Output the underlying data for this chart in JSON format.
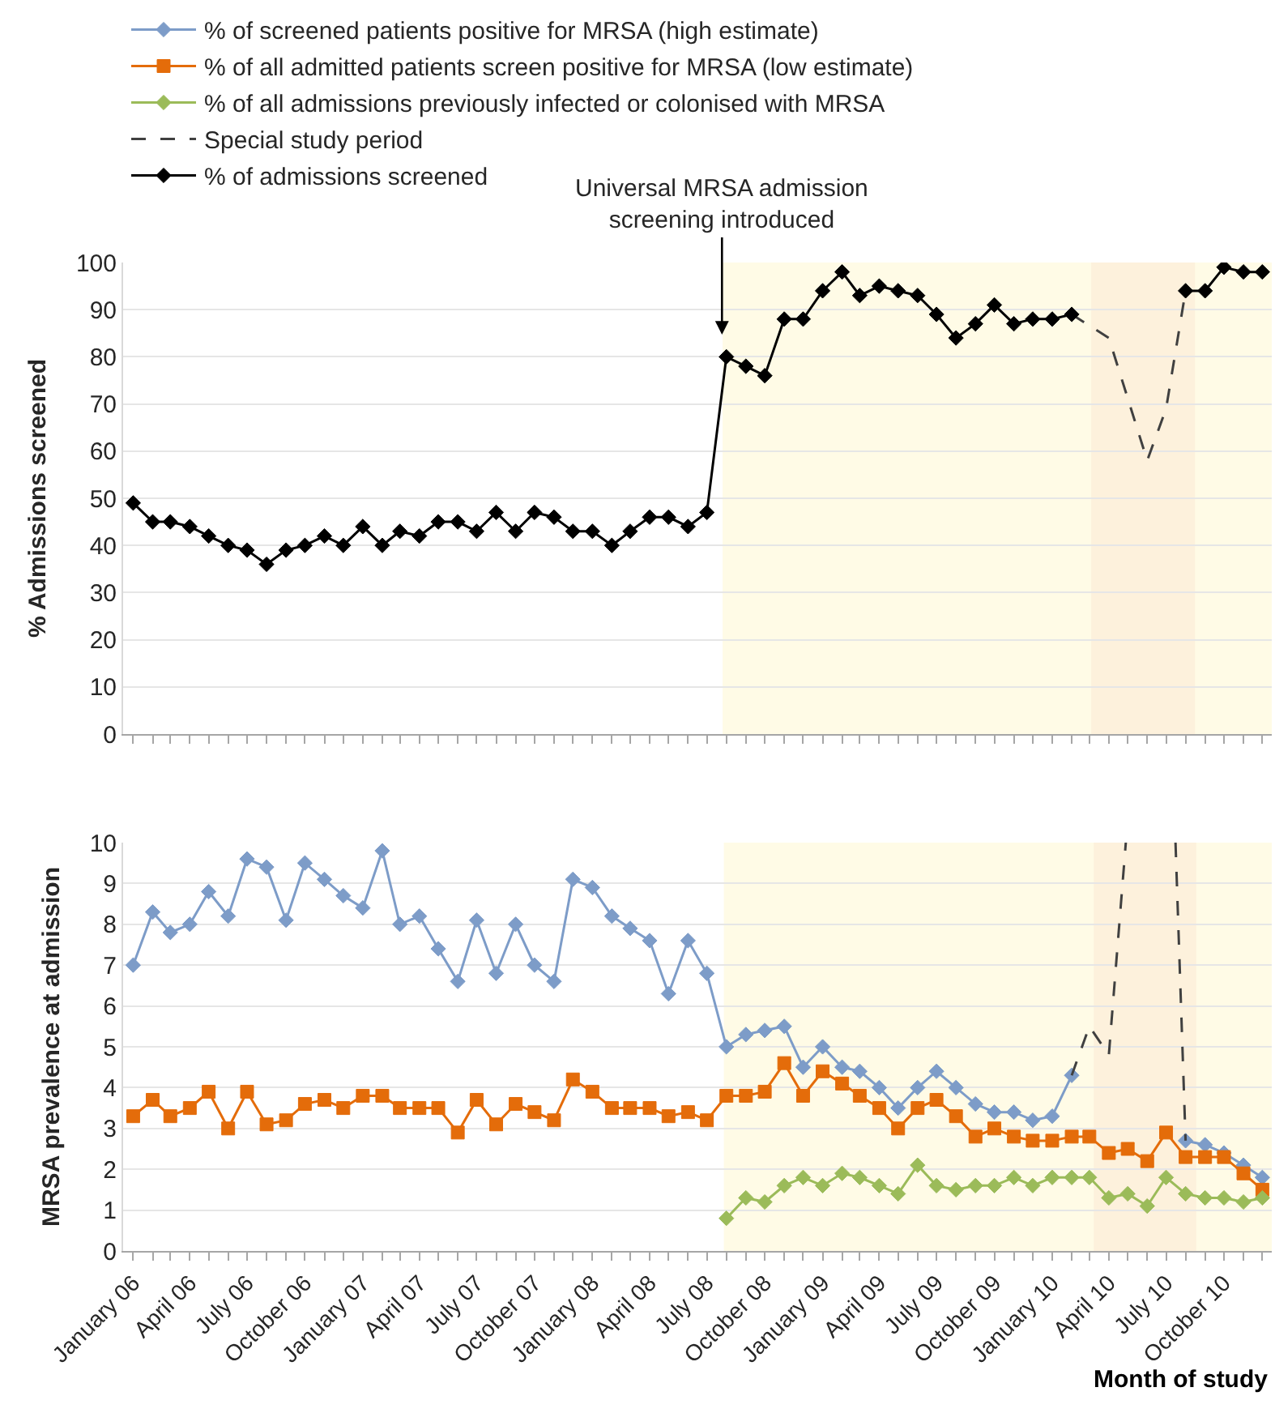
{
  "chart_data": [
    {
      "type": "line",
      "ylabel": "% Admissions screened",
      "legend": "top left",
      "grid": "y",
      "tick_labels": "y",
      "x": [
        "2006-01",
        "2006-02",
        "2006-03",
        "2006-04",
        "2006-05",
        "2006-06",
        "2006-07",
        "2006-08",
        "2006-09",
        "2006-10",
        "2006-11",
        "2006-12",
        "2007-01",
        "2007-02",
        "2007-03",
        "2007-04",
        "2007-05",
        "2007-06",
        "2007-07",
        "2007-08",
        "2007-09",
        "2007-10",
        "2007-11",
        "2007-12",
        "2008-01",
        "2008-02",
        "2008-03",
        "2008-04",
        "2008-05",
        "2008-06",
        "2008-07",
        "2008-08",
        "2008-09",
        "2008-10",
        "2008-11",
        "2008-12",
        "2009-01",
        "2009-02",
        "2009-03",
        "2009-04",
        "2009-05",
        "2009-06",
        "2009-07",
        "2009-08",
        "2009-09",
        "2009-10",
        "2009-11",
        "2009-12",
        "2010-01",
        "2010-02",
        "2010-03",
        "2010-04",
        "2010-05",
        "2010-06",
        "2010-07",
        "2010-08",
        "2010-09",
        "2010-10",
        "2010-11",
        "2010-12"
      ],
      "series": [
        {
          "name": "Special study period",
          "color": "#404040",
          "line_style": "dashed",
          "marker": "none",
          "x": [
            "2010-02",
            "2010-04",
            "2010-06",
            "2010-07",
            "2010-08"
          ],
          "values": [
            89,
            84,
            58,
            69,
            94
          ]
        },
        {
          "name": "% of admissions screened",
          "color": "#000000",
          "marker": "diamond",
          "values": [
            49,
            45,
            45,
            44,
            42,
            40,
            39,
            36,
            39,
            40,
            42,
            40,
            44,
            40,
            43,
            42,
            45,
            45,
            43,
            47,
            43,
            47,
            46,
            43,
            43,
            40,
            43,
            46,
            46,
            44,
            47,
            80,
            78,
            76,
            88,
            88,
            94,
            98,
            93,
            95,
            94,
            93,
            89,
            84,
            87,
            91,
            87,
            88,
            88,
            89,
            null,
            null,
            null,
            null,
            null,
            94,
            94,
            99,
            98,
            98
          ]
        }
      ],
      "xlim": [
        "2005-12-16",
        "2010-12-16"
      ],
      "xticks": [
        {
          "value": "2006-01",
          "label": null
        },
        {
          "value": "2006-02",
          "label": null
        },
        {
          "value": "2006-03",
          "label": null
        },
        {
          "value": "2006-04",
          "label": null
        },
        {
          "value": "2006-05",
          "label": null
        },
        {
          "value": "2006-06",
          "label": null
        },
        {
          "value": "2006-07",
          "label": null
        },
        {
          "value": "2006-08",
          "label": null
        },
        {
          "value": "2006-09",
          "label": null
        },
        {
          "value": "2006-10",
          "label": null
        },
        {
          "value": "2006-11",
          "label": null
        },
        {
          "value": "2006-12",
          "label": null
        },
        {
          "value": "2007-01",
          "label": null
        },
        {
          "value": "2007-02",
          "label": null
        },
        {
          "value": "2007-03",
          "label": null
        },
        {
          "value": "2007-04",
          "label": null
        },
        {
          "value": "2007-05",
          "label": null
        },
        {
          "value": "2007-06",
          "label": null
        },
        {
          "value": "2007-07",
          "label": null
        },
        {
          "value": "2007-08",
          "label": null
        },
        {
          "value": "2007-09",
          "label": null
        },
        {
          "value": "2007-10",
          "label": null
        },
        {
          "value": "2007-11",
          "label": null
        },
        {
          "value": "2007-12",
          "label": null
        },
        {
          "value": "2008-01",
          "label": null
        },
        {
          "value": "2008-02",
          "label": null
        },
        {
          "value": "2008-03",
          "label": null
        },
        {
          "value": "2008-04",
          "label": null
        },
        {
          "value": "2008-05",
          "label": null
        },
        {
          "value": "2008-06",
          "label": null
        },
        {
          "value": "2008-07",
          "label": null
        },
        {
          "value": "2008-08",
          "label": null
        },
        {
          "value": "2008-09",
          "label": null
        },
        {
          "value": "2008-10",
          "label": null
        },
        {
          "value": "2008-11",
          "label": null
        },
        {
          "value": "2008-12",
          "label": null
        },
        {
          "value": "2009-01",
          "label": null
        },
        {
          "value": "2009-02",
          "label": null
        },
        {
          "value": "2009-03",
          "label": null
        },
        {
          "value": "2009-04",
          "label": null
        },
        {
          "value": "2009-05",
          "label": null
        },
        {
          "value": "2009-06",
          "label": null
        },
        {
          "value": "2009-07",
          "label": null
        },
        {
          "value": "2009-08",
          "label": null
        },
        {
          "value": "2009-09",
          "label": null
        },
        {
          "value": "2009-10",
          "label": null
        },
        {
          "value": "2009-11",
          "label": null
        },
        {
          "value": "2009-12",
          "label": null
        },
        {
          "value": "2010-01",
          "label": null
        },
        {
          "value": "2010-02",
          "label": null
        },
        {
          "value": "2010-03",
          "label": null
        },
        {
          "value": "2010-04",
          "label": null
        },
        {
          "value": "2010-05",
          "label": null
        },
        {
          "value": "2010-06",
          "label": null
        },
        {
          "value": "2010-07",
          "label": null
        },
        {
          "value": "2010-08",
          "label": null
        },
        {
          "value": "2010-09",
          "label": null
        },
        {
          "value": "2010-10",
          "label": null
        },
        {
          "value": "2010-11",
          "label": null
        },
        {
          "value": "2010-12",
          "label": null
        }
      ],
      "ylim": [
        0,
        100
      ],
      "yticks": [
        0,
        10,
        20,
        30,
        40,
        50,
        60,
        70,
        80,
        90,
        100
      ],
      "bands": [
        {
          "axis": "x",
          "from": "2008-07-26",
          "to": "2010-12-16",
          "color": "#fffbe6"
        },
        {
          "axis": "x",
          "from": "2010-03-04",
          "to": "2010-08-16",
          "color": "#fdf1dc"
        }
      ],
      "annotations": [
        {
          "text": "Universal MRSA admission screening introduced",
          "x": "2008-07-25",
          "y": 84
        }
      ]
    },
    {
      "type": "line",
      "xlabel": "Month of study",
      "ylabel": "MRSA prevalence at admission",
      "legend": "top left",
      "grid": "y",
      "x": [
        "2006-01",
        "2006-02",
        "2006-03",
        "2006-04",
        "2006-05",
        "2006-06",
        "2006-07",
        "2006-08",
        "2006-09",
        "2006-10",
        "2006-11",
        "2006-12",
        "2007-01",
        "2007-02",
        "2007-03",
        "2007-04",
        "2007-05",
        "2007-06",
        "2007-07",
        "2007-08",
        "2007-09",
        "2007-10",
        "2007-11",
        "2007-12",
        "2008-01",
        "2008-02",
        "2008-03",
        "2008-04",
        "2008-05",
        "2008-06",
        "2008-07",
        "2008-08",
        "2008-09",
        "2008-10",
        "2008-11",
        "2008-12",
        "2009-01",
        "2009-02",
        "2009-03",
        "2009-04",
        "2009-05",
        "2009-06",
        "2009-07",
        "2009-08",
        "2009-09",
        "2009-10",
        "2009-11",
        "2009-12",
        "2010-01",
        "2010-02",
        "2010-03",
        "2010-04",
        "2010-05",
        "2010-06",
        "2010-07",
        "2010-08",
        "2010-09",
        "2010-10",
        "2010-11",
        "2010-12"
      ],
      "series": [
        {
          "name": "% of screened patients positive for MRSA (high estimate)",
          "color": "#7d9cc8",
          "marker": "diamond",
          "values": [
            7.0,
            8.3,
            7.8,
            8.0,
            8.8,
            8.2,
            9.6,
            9.4,
            8.1,
            9.5,
            9.1,
            8.7,
            8.4,
            9.8,
            8.0,
            8.2,
            7.4,
            6.6,
            8.1,
            6.8,
            8.0,
            7.0,
            6.6,
            9.1,
            8.9,
            8.2,
            7.9,
            7.6,
            6.3,
            7.6,
            6.8,
            5.0,
            5.3,
            5.4,
            5.5,
            4.5,
            5.0,
            4.5,
            4.4,
            4.0,
            3.5,
            4.0,
            4.4,
            4.0,
            3.6,
            3.4,
            3.4,
            3.2,
            3.3,
            4.3,
            null,
            null,
            null,
            null,
            null,
            2.7,
            2.6,
            2.4,
            2.1,
            1.8
          ]
        },
        {
          "name": "% of all admitted patients screen positive for MRSA (low estimate)",
          "color": "#e46c0a",
          "marker": "square",
          "values": [
            3.3,
            3.7,
            3.3,
            3.5,
            3.9,
            3.0,
            3.9,
            3.1,
            3.2,
            3.6,
            3.7,
            3.5,
            3.8,
            3.8,
            3.5,
            3.5,
            3.5,
            2.9,
            3.7,
            3.1,
            3.6,
            3.4,
            3.2,
            4.2,
            3.9,
            3.5,
            3.5,
            3.5,
            3.3,
            3.4,
            3.2,
            3.8,
            3.8,
            3.9,
            4.6,
            3.8,
            4.4,
            4.1,
            3.8,
            3.5,
            3.0,
            3.5,
            3.7,
            3.3,
            2.8,
            3.0,
            2.8,
            2.7,
            2.7,
            2.8,
            2.8,
            2.4,
            2.5,
            2.2,
            2.9,
            2.3,
            2.3,
            2.3,
            1.9,
            1.5
          ]
        },
        {
          "name": "% of all admissions previously infected or colonised with MRSA",
          "color": "#9bbb59",
          "marker": "diamond",
          "values": [
            null,
            null,
            null,
            null,
            null,
            null,
            null,
            null,
            null,
            null,
            null,
            null,
            null,
            null,
            null,
            null,
            null,
            null,
            null,
            null,
            null,
            null,
            null,
            null,
            null,
            null,
            null,
            null,
            null,
            null,
            null,
            0.8,
            1.3,
            1.2,
            1.6,
            1.8,
            1.6,
            1.9,
            1.8,
            1.6,
            1.4,
            2.1,
            1.6,
            1.5,
            1.6,
            1.6,
            1.8,
            1.6,
            1.8,
            1.8,
            1.8,
            1.3,
            1.4,
            1.1,
            1.8,
            1.4,
            1.3,
            1.3,
            1.2,
            1.3
          ]
        },
        {
          "color": "#404040",
          "line_style": "dashed",
          "marker": "none",
          "x": [
            "2010-02",
            "2010-03",
            "2010-04",
            "2010-04-28",
            "2010-05-31",
            "2010-07-16",
            "2010-08"
          ],
          "values": [
            4.3,
            5.5,
            4.8,
            10,
            null,
            10,
            2.7
          ]
        }
      ],
      "xlim": [
        "2005-12-16",
        "2010-12-16"
      ],
      "xticks": [
        {
          "value": "2006-01",
          "label": "January 06"
        },
        {
          "value": "2006-02",
          "label": null
        },
        {
          "value": "2006-03",
          "label": null
        },
        {
          "value": "2006-04",
          "label": "April 06"
        },
        {
          "value": "2006-05",
          "label": null
        },
        {
          "value": "2006-06",
          "label": null
        },
        {
          "value": "2006-07",
          "label": "July 06"
        },
        {
          "value": "2006-08",
          "label": null
        },
        {
          "value": "2006-09",
          "label": null
        },
        {
          "value": "2006-10",
          "label": "October 06"
        },
        {
          "value": "2006-11",
          "label": null
        },
        {
          "value": "2006-12",
          "label": null
        },
        {
          "value": "2007-01",
          "label": "January 07"
        },
        {
          "value": "2007-02",
          "label": null
        },
        {
          "value": "2007-03",
          "label": null
        },
        {
          "value": "2007-04",
          "label": "April 07"
        },
        {
          "value": "2007-05",
          "label": null
        },
        {
          "value": "2007-06",
          "label": null
        },
        {
          "value": "2007-07",
          "label": "July 07"
        },
        {
          "value": "2007-08",
          "label": null
        },
        {
          "value": "2007-09",
          "label": null
        },
        {
          "value": "2007-10",
          "label": "October 07"
        },
        {
          "value": "2007-11",
          "label": null
        },
        {
          "value": "2007-12",
          "label": null
        },
        {
          "value": "2008-01",
          "label": "January 08"
        },
        {
          "value": "2008-02",
          "label": null
        },
        {
          "value": "2008-03",
          "label": null
        },
        {
          "value": "2008-04",
          "label": "April 08"
        },
        {
          "value": "2008-05",
          "label": null
        },
        {
          "value": "2008-06",
          "label": null
        },
        {
          "value": "2008-07",
          "label": "July 08"
        },
        {
          "value": "2008-08",
          "label": null
        },
        {
          "value": "2008-09",
          "label": null
        },
        {
          "value": "2008-10",
          "label": "October 08"
        },
        {
          "value": "2008-11",
          "label": null
        },
        {
          "value": "2008-12",
          "label": null
        },
        {
          "value": "2009-01",
          "label": "January 09"
        },
        {
          "value": "2009-02",
          "label": null
        },
        {
          "value": "2009-03",
          "label": null
        },
        {
          "value": "2009-04",
          "label": "April 09"
        },
        {
          "value": "2009-05",
          "label": null
        },
        {
          "value": "2009-06",
          "label": null
        },
        {
          "value": "2009-07",
          "label": "July 09"
        },
        {
          "value": "2009-08",
          "label": null
        },
        {
          "value": "2009-09",
          "label": null
        },
        {
          "value": "2009-10",
          "label": "October 09"
        },
        {
          "value": "2009-11",
          "label": null
        },
        {
          "value": "2009-12",
          "label": null
        },
        {
          "value": "2010-01",
          "label": "January 10"
        },
        {
          "value": "2010-02",
          "label": null
        },
        {
          "value": "2010-03",
          "label": null
        },
        {
          "value": "2010-04",
          "label": "April 10"
        },
        {
          "value": "2010-05",
          "label": null
        },
        {
          "value": "2010-06",
          "label": null
        },
        {
          "value": "2010-07",
          "label": "July 10"
        },
        {
          "value": "2010-08",
          "label": null
        },
        {
          "value": "2010-09",
          "label": null
        },
        {
          "value": "2010-10",
          "label": "October 10"
        },
        {
          "value": "2010-11",
          "label": null
        },
        {
          "value": "2010-12",
          "label": null
        }
      ],
      "ylim": [
        0,
        10
      ],
      "yticks": [
        0,
        1,
        2,
        3,
        4,
        5,
        6,
        7,
        8,
        9,
        10
      ],
      "bands": [
        {
          "axis": "x",
          "from": "2008-07-28",
          "to": "2010-12-16",
          "color": "#fffbe6"
        },
        {
          "axis": "x",
          "from": "2010-03-08",
          "to": "2010-08-18",
          "color": "#fdf1dc"
        }
      ]
    }
  ]
}
